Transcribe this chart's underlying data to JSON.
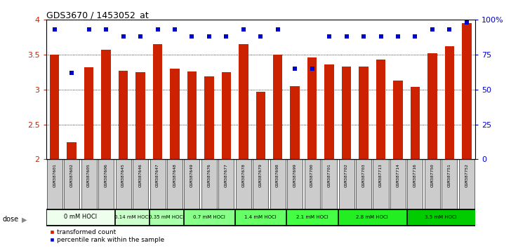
{
  "title": "GDS3670 / 1453052_at",
  "samples": [
    "GSM387601",
    "GSM387602",
    "GSM387605",
    "GSM387606",
    "GSM387645",
    "GSM387646",
    "GSM387647",
    "GSM387648",
    "GSM387649",
    "GSM387676",
    "GSM387677",
    "GSM387678",
    "GSM387679",
    "GSM387698",
    "GSM387699",
    "GSM387700",
    "GSM387701",
    "GSM387702",
    "GSM387703",
    "GSM387713",
    "GSM387714",
    "GSM387716",
    "GSM387750",
    "GSM387751",
    "GSM387752"
  ],
  "bar_values": [
    3.5,
    2.25,
    3.32,
    3.57,
    3.27,
    3.25,
    3.65,
    3.3,
    3.26,
    3.19,
    3.25,
    3.65,
    2.97,
    3.5,
    3.05,
    3.46,
    3.36,
    3.33,
    3.33,
    3.43,
    3.13,
    3.04,
    3.52,
    3.62,
    3.95
  ],
  "percentile_values": [
    93,
    62,
    93,
    93,
    88,
    88,
    93,
    93,
    88,
    88,
    88,
    93,
    88,
    93,
    65,
    65,
    88,
    88,
    88,
    88,
    88,
    88,
    93,
    93,
    98
  ],
  "dose_groups": [
    {
      "label": "0 mM HOCl",
      "start": 0,
      "end": 4,
      "color": "#eeffee"
    },
    {
      "label": "0.14 mM HOCl",
      "start": 4,
      "end": 6,
      "color": "#ccffcc"
    },
    {
      "label": "0.35 mM HOCl",
      "start": 6,
      "end": 8,
      "color": "#aaffaa"
    },
    {
      "label": "0.7 mM HOCl",
      "start": 8,
      "end": 11,
      "color": "#88ff88"
    },
    {
      "label": "1.4 mM HOCl",
      "start": 11,
      "end": 14,
      "color": "#66ff66"
    },
    {
      "label": "2.1 mM HOCl",
      "start": 14,
      "end": 17,
      "color": "#44ff44"
    },
    {
      "label": "2.8 mM HOCl",
      "start": 17,
      "end": 21,
      "color": "#22ee22"
    },
    {
      "label": "3.5 mM HOCl",
      "start": 21,
      "end": 25,
      "color": "#00cc00"
    }
  ],
  "bar_color": "#cc2200",
  "percentile_color": "#0000cc",
  "ylim": [
    2.0,
    4.0
  ],
  "yticks": [
    2.0,
    2.5,
    3.0,
    3.5,
    4.0
  ],
  "ytick_labels": [
    "2",
    "2.5",
    "3",
    "3.5",
    "4"
  ],
  "y2lim": [
    0,
    100
  ],
  "y2ticks": [
    0,
    25,
    50,
    75,
    100
  ],
  "y2tick_labels": [
    "0",
    "25",
    "50",
    "75",
    "100%"
  ],
  "grid_dotted_at": [
    2.5,
    3.0,
    3.5
  ],
  "background_color": "#ffffff",
  "xlabel_bg": "#cccccc",
  "dose_label_text": "dose"
}
